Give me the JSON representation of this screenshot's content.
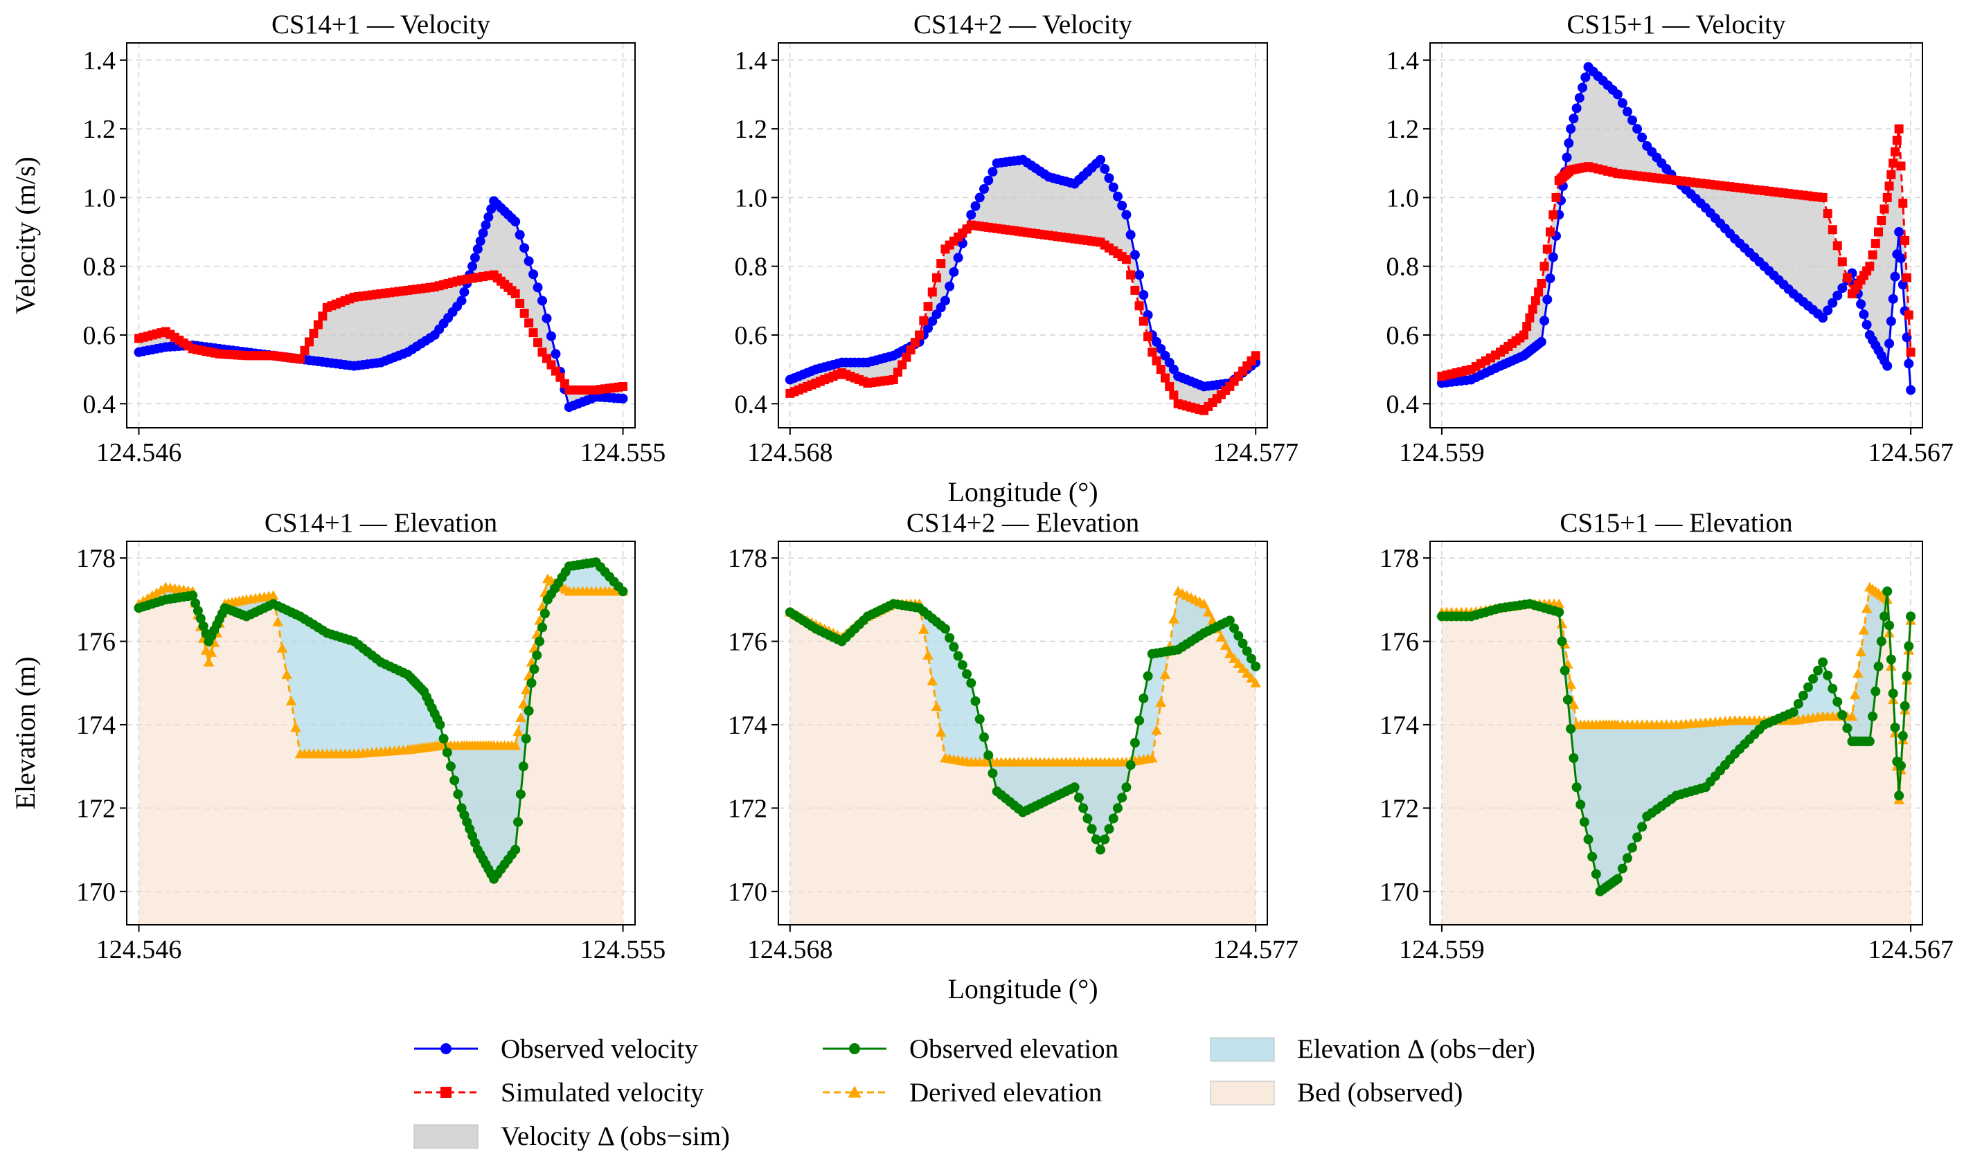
{
  "chart_data": [
    {
      "type": "line",
      "title": "CS14+1 — Velocity",
      "xlabel": "",
      "ylabel": "Velocity (m/s)",
      "xlim": [
        124.546,
        124.555
      ],
      "ylim": [
        0.33,
        1.45
      ],
      "xticks": [
        124.546,
        124.555
      ],
      "xtick_labels": [
        "124.546",
        "124.555"
      ],
      "yticks": [
        0.4,
        0.6,
        0.8,
        1.0,
        1.2,
        1.4
      ],
      "ytick_labels": [
        "0.4",
        "0.6",
        "0.8",
        "1.0",
        "1.2",
        "1.4"
      ],
      "series": [
        {
          "name": "Observed velocity",
          "color": "#0000ff",
          "marker": "circle",
          "x": [
            124.546,
            124.5465,
            124.547,
            124.5475,
            124.548,
            124.5485,
            124.549,
            124.5495,
            124.55,
            124.5505,
            124.551,
            124.5515,
            124.552,
            124.5523,
            124.5526,
            124.553,
            124.5535,
            124.554,
            124.5545,
            124.555
          ],
          "y": [
            0.55,
            0.565,
            0.57,
            0.56,
            0.55,
            0.54,
            0.53,
            0.52,
            0.51,
            0.52,
            0.55,
            0.6,
            0.7,
            0.85,
            0.99,
            0.93,
            0.7,
            0.39,
            0.42,
            0.415
          ]
        },
        {
          "name": "Simulated velocity",
          "color": "#ff0000",
          "marker": "square",
          "x": [
            124.546,
            124.5465,
            124.547,
            124.5475,
            124.548,
            124.5485,
            124.549,
            124.5495,
            124.55,
            124.5505,
            124.551,
            124.5515,
            124.552,
            124.5526,
            124.553,
            124.5535,
            124.554,
            124.5545,
            124.555
          ],
          "y": [
            0.59,
            0.61,
            0.56,
            0.545,
            0.54,
            0.54,
            0.53,
            0.68,
            0.71,
            0.72,
            0.73,
            0.74,
            0.76,
            0.775,
            0.72,
            0.55,
            0.44,
            0.44,
            0.45
          ]
        }
      ],
      "fills": [
        {
          "name": "Velocity Δ (obs−sim)",
          "color": "#c8c8c8",
          "between": [
            "Observed velocity",
            "Simulated velocity"
          ]
        }
      ]
    },
    {
      "type": "line",
      "title": "CS14+2 — Velocity",
      "xlabel": "Longitude (°)",
      "ylabel": "",
      "xlim": [
        124.568,
        124.577
      ],
      "ylim": [
        0.33,
        1.45
      ],
      "xticks": [
        124.568,
        124.577
      ],
      "xtick_labels": [
        "124.568",
        "124.577"
      ],
      "yticks": [
        0.4,
        0.6,
        0.8,
        1.0,
        1.2,
        1.4
      ],
      "ytick_labels": [
        "0.4",
        "0.6",
        "0.8",
        "1.0",
        "1.2",
        "1.4"
      ],
      "series": [
        {
          "name": "Observed velocity",
          "color": "#0000ff",
          "marker": "circle",
          "x": [
            124.568,
            124.5685,
            124.569,
            124.5695,
            124.57,
            124.5705,
            124.571,
            124.5715,
            124.572,
            124.5725,
            124.573,
            124.5735,
            124.574,
            124.5745,
            124.575,
            124.5755,
            124.576,
            124.5765,
            124.577
          ],
          "y": [
            0.47,
            0.5,
            0.52,
            0.52,
            0.54,
            0.58,
            0.7,
            0.95,
            1.1,
            1.11,
            1.06,
            1.04,
            1.11,
            0.95,
            0.6,
            0.48,
            0.45,
            0.46,
            0.52
          ]
        },
        {
          "name": "Simulated velocity",
          "color": "#ff0000",
          "marker": "square",
          "x": [
            124.568,
            124.5685,
            124.569,
            124.5695,
            124.57,
            124.5705,
            124.571,
            124.5715,
            124.572,
            124.5725,
            124.573,
            124.5735,
            124.574,
            124.5745,
            124.575,
            124.5755,
            124.576,
            124.5765,
            124.577
          ],
          "y": [
            0.43,
            0.46,
            0.49,
            0.46,
            0.47,
            0.6,
            0.85,
            0.92,
            0.91,
            0.9,
            0.89,
            0.88,
            0.87,
            0.82,
            0.55,
            0.4,
            0.38,
            0.45,
            0.54
          ]
        }
      ],
      "fills": [
        {
          "name": "Velocity Δ (obs−sim)",
          "color": "#c8c8c8",
          "between": [
            "Observed velocity",
            "Simulated velocity"
          ]
        }
      ]
    },
    {
      "type": "line",
      "title": "CS15+1 — Velocity",
      "xlabel": "",
      "ylabel": "",
      "xlim": [
        124.559,
        124.567
      ],
      "ylim": [
        0.33,
        1.45
      ],
      "xticks": [
        124.559,
        124.567
      ],
      "xtick_labels": [
        "124.559",
        "124.567"
      ],
      "yticks": [
        0.4,
        0.6,
        0.8,
        1.0,
        1.2,
        1.4
      ],
      "ytick_labels": [
        "0.4",
        "0.6",
        "0.8",
        "1.0",
        "1.2",
        "1.4"
      ],
      "series": [
        {
          "name": "Observed velocity",
          "color": "#0000ff",
          "marker": "circle",
          "x": [
            124.559,
            124.5595,
            124.56,
            124.5604,
            124.5607,
            124.561,
            124.5612,
            124.5615,
            124.562,
            124.5625,
            124.563,
            124.5635,
            124.564,
            124.5645,
            124.565,
            124.5655,
            124.566,
            124.5663,
            124.5666,
            124.5668,
            124.567
          ],
          "y": [
            0.46,
            0.47,
            0.51,
            0.54,
            0.58,
            0.95,
            1.2,
            1.38,
            1.3,
            1.15,
            1.05,
            0.97,
            0.88,
            0.8,
            0.72,
            0.65,
            0.78,
            0.6,
            0.51,
            0.9,
            0.44
          ]
        },
        {
          "name": "Simulated velocity",
          "color": "#ff0000",
          "marker": "square",
          "x": [
            124.559,
            124.5595,
            124.56,
            124.5604,
            124.5607,
            124.561,
            124.5612,
            124.5615,
            124.562,
            124.5625,
            124.563,
            124.5635,
            124.564,
            124.5645,
            124.565,
            124.5655,
            124.566,
            124.5663,
            124.5666,
            124.5668,
            124.567
          ],
          "y": [
            0.48,
            0.5,
            0.55,
            0.6,
            0.75,
            1.05,
            1.08,
            1.09,
            1.07,
            1.06,
            1.05,
            1.04,
            1.03,
            1.02,
            1.01,
            1.0,
            0.72,
            0.8,
            1.0,
            1.2,
            0.55
          ]
        }
      ],
      "fills": [
        {
          "name": "Velocity Δ (obs−sim)",
          "color": "#c8c8c8",
          "between": [
            "Observed velocity",
            "Simulated velocity"
          ]
        }
      ]
    },
    {
      "type": "area",
      "title": "CS14+1 — Elevation",
      "xlabel": "",
      "ylabel": "Elevation (m)",
      "xlim": [
        124.546,
        124.555
      ],
      "ylim": [
        169.2,
        178.4
      ],
      "xticks": [
        124.546,
        124.555
      ],
      "xtick_labels": [
        "124.546",
        "124.555"
      ],
      "yticks": [
        170,
        172,
        174,
        176,
        178
      ],
      "ytick_labels": [
        "170",
        "172",
        "174",
        "176",
        "178"
      ],
      "series": [
        {
          "name": "Observed elevation",
          "color": "#008000",
          "marker": "circle",
          "x": [
            124.546,
            124.5465,
            124.547,
            124.5473,
            124.5476,
            124.548,
            124.5485,
            124.549,
            124.5495,
            124.55,
            124.5505,
            124.551,
            124.5513,
            124.5516,
            124.552,
            124.5523,
            124.5526,
            124.553,
            124.5533,
            124.5536,
            124.554,
            124.5545,
            124.555
          ],
          "y": [
            176.8,
            177.0,
            177.1,
            176.0,
            176.8,
            176.6,
            176.9,
            176.6,
            176.2,
            176.0,
            175.5,
            175.2,
            174.8,
            174.0,
            172.0,
            171.0,
            170.3,
            171.0,
            175.0,
            177.0,
            177.8,
            177.9,
            177.2
          ]
        },
        {
          "name": "Derived elevation",
          "color": "#ffa500",
          "marker": "triangle",
          "x": [
            124.546,
            124.5465,
            124.547,
            124.5473,
            124.5476,
            124.548,
            124.5485,
            124.549,
            124.5495,
            124.55,
            124.5505,
            124.551,
            124.5513,
            124.5516,
            124.552,
            124.5523,
            124.5526,
            124.553,
            124.5533,
            124.5536,
            124.554,
            124.5545,
            124.555
          ],
          "y": [
            176.9,
            177.3,
            177.2,
            175.5,
            176.9,
            177.0,
            177.1,
            173.3,
            173.3,
            173.3,
            173.35,
            173.4,
            173.45,
            173.5,
            173.5,
            173.5,
            173.5,
            173.5,
            175.5,
            177.5,
            177.2,
            177.2,
            177.2
          ]
        }
      ],
      "fills": [
        {
          "name": "Elevation Δ (obs−der)",
          "color": "#add8e6",
          "between": [
            "Observed elevation",
            "Derived elevation"
          ]
        },
        {
          "name": "Bed (observed)",
          "color": "#f5dcc8",
          "under": "Derived elevation"
        }
      ]
    },
    {
      "type": "area",
      "title": "CS14+2 — Elevation",
      "xlabel": "Longitude (°)",
      "ylabel": "",
      "xlim": [
        124.568,
        124.577
      ],
      "ylim": [
        169.2,
        178.4
      ],
      "xticks": [
        124.568,
        124.577
      ],
      "xtick_labels": [
        "124.568",
        "124.577"
      ],
      "yticks": [
        170,
        172,
        174,
        176,
        178
      ],
      "ytick_labels": [
        "170",
        "172",
        "174",
        "176",
        "178"
      ],
      "series": [
        {
          "name": "Observed elevation",
          "color": "#008000",
          "marker": "circle",
          "x": [
            124.568,
            124.5685,
            124.569,
            124.5695,
            124.57,
            124.5705,
            124.571,
            124.5715,
            124.572,
            124.5725,
            124.573,
            124.5735,
            124.574,
            124.5745,
            124.575,
            124.5755,
            124.576,
            124.5765,
            124.577
          ],
          "y": [
            176.7,
            176.3,
            176.0,
            176.6,
            176.9,
            176.8,
            176.3,
            175.0,
            172.4,
            171.9,
            172.2,
            172.5,
            171.0,
            172.5,
            175.7,
            175.8,
            176.2,
            176.5,
            175.4
          ]
        },
        {
          "name": "Derived elevation",
          "color": "#ffa500",
          "marker": "triangle",
          "x": [
            124.568,
            124.5685,
            124.569,
            124.5695,
            124.57,
            124.5705,
            124.571,
            124.5715,
            124.572,
            124.5725,
            124.573,
            124.5735,
            124.574,
            124.5745,
            124.575,
            124.5755,
            124.576,
            124.5765,
            124.577
          ],
          "y": [
            176.7,
            176.4,
            176.1,
            176.6,
            176.9,
            176.9,
            173.2,
            173.1,
            173.1,
            173.1,
            173.1,
            173.1,
            173.1,
            173.1,
            173.2,
            177.2,
            176.9,
            175.7,
            175.0
          ]
        }
      ],
      "fills": [
        {
          "name": "Elevation Δ (obs−der)",
          "color": "#add8e6",
          "between": [
            "Observed elevation",
            "Derived elevation"
          ]
        },
        {
          "name": "Bed (observed)",
          "color": "#f5dcc8",
          "under": "Derived elevation"
        }
      ]
    },
    {
      "type": "area",
      "title": "CS15+1 — Elevation",
      "xlabel": "",
      "ylabel": "",
      "xlim": [
        124.559,
        124.567
      ],
      "ylim": [
        169.2,
        178.4
      ],
      "xticks": [
        124.559,
        124.567
      ],
      "xtick_labels": [
        "124.559",
        "124.567"
      ],
      "yticks": [
        170,
        172,
        174,
        176,
        178
      ],
      "ytick_labels": [
        "170",
        "172",
        "174",
        "176",
        "178"
      ],
      "series": [
        {
          "name": "Observed elevation",
          "color": "#008000",
          "marker": "circle",
          "x": [
            124.559,
            124.5595,
            124.56,
            124.5605,
            124.561,
            124.5613,
            124.5617,
            124.562,
            124.5625,
            124.563,
            124.5635,
            124.564,
            124.5645,
            124.565,
            124.5655,
            124.566,
            124.5663,
            124.5666,
            124.5668,
            124.567
          ],
          "y": [
            176.6,
            176.6,
            176.8,
            176.9,
            176.7,
            172.5,
            170.0,
            170.3,
            171.8,
            172.3,
            172.5,
            173.3,
            174.0,
            174.3,
            175.5,
            173.6,
            173.6,
            177.2,
            172.3,
            176.6
          ]
        },
        {
          "name": "Derived elevation",
          "color": "#ffa500",
          "marker": "triangle",
          "x": [
            124.559,
            124.5595,
            124.56,
            124.5605,
            124.561,
            124.5613,
            124.5617,
            124.562,
            124.5625,
            124.563,
            124.5635,
            124.564,
            124.5645,
            124.565,
            124.5655,
            124.566,
            124.5663,
            124.5666,
            124.5668,
            124.567
          ],
          "y": [
            176.7,
            176.7,
            176.8,
            176.9,
            176.9,
            174.0,
            174.0,
            174.0,
            174.0,
            174.0,
            174.05,
            174.1,
            174.1,
            174.1,
            174.2,
            174.2,
            177.3,
            177.0,
            172.2,
            176.5
          ]
        }
      ],
      "fills": [
        {
          "name": "Elevation Δ (obs−der)",
          "color": "#add8e6",
          "between": [
            "Observed elevation",
            "Derived elevation"
          ]
        },
        {
          "name": "Bed (observed)",
          "color": "#f5dcc8",
          "under": "Derived elevation"
        }
      ]
    }
  ],
  "legend": {
    "placement": "bottom-center",
    "items": [
      {
        "label": "Observed velocity",
        "kind": "line-marker",
        "color": "#0000ff",
        "marker": "circle",
        "dash": false
      },
      {
        "label": "Simulated velocity",
        "kind": "line-marker",
        "color": "#ff0000",
        "marker": "square",
        "dash": true
      },
      {
        "label": "Velocity Δ (obs−sim)",
        "kind": "patch",
        "color": "#c8c8c8"
      },
      {
        "label": "Observed elevation",
        "kind": "line-marker",
        "color": "#008000",
        "marker": "circle",
        "dash": false
      },
      {
        "label": "Derived elevation",
        "kind": "line-marker",
        "color": "#ffa500",
        "marker": "triangle",
        "dash": true
      },
      {
        "label": "Elevation Δ (obs−der)",
        "kind": "patch",
        "color": "#add8e6"
      },
      {
        "label": "Bed (observed)",
        "kind": "patch",
        "color": "#f5dcc8"
      }
    ]
  }
}
